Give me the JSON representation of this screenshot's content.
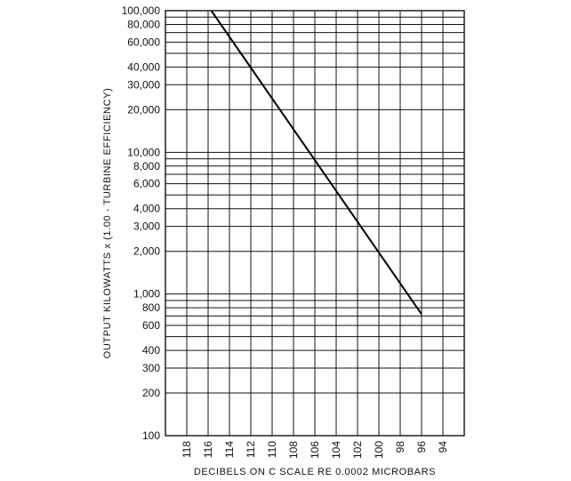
{
  "chart_data": {
    "type": "line",
    "xlabel": "DECIBELS ON C SCALE RE 0.0002 MICROBARS",
    "ylabel": "OUTPUT KILOWATTS x (1.00 - TURBINE EFFICIENCY)",
    "x_reversed": true,
    "xlim": [
      120,
      92
    ],
    "ylim": [
      100,
      100000
    ],
    "y_scale": "log",
    "grid": true,
    "x_ticks": [
      118,
      116,
      114,
      112,
      110,
      108,
      106,
      104,
      102,
      100,
      98,
      96,
      94
    ],
    "x_tick_labels": [
      "118",
      "116",
      "114",
      "112",
      "110",
      "108",
      "106",
      "104",
      "102",
      "100",
      "98",
      "96",
      "94"
    ],
    "y_ticks": [
      100,
      200,
      300,
      400,
      600,
      800,
      1000,
      2000,
      3000,
      4000,
      6000,
      8000,
      10000,
      20000,
      30000,
      40000,
      60000,
      80000,
      100000
    ],
    "y_tick_labels": [
      "100",
      "200",
      "300",
      "400",
      "600",
      "800",
      "1,000",
      "2,000",
      "3,000",
      "4,000",
      "6,000",
      "8,000",
      "10,000",
      "20,000",
      "30,000",
      "40,000",
      "60,000",
      "80,000",
      "100,000"
    ],
    "y_minor_gridlines": [
      500,
      700,
      900,
      5000,
      7000,
      9000,
      50000,
      70000,
      90000
    ],
    "series": [
      {
        "x": [
          115.7,
          96.0
        ],
        "y": [
          100000,
          720
        ]
      }
    ]
  }
}
